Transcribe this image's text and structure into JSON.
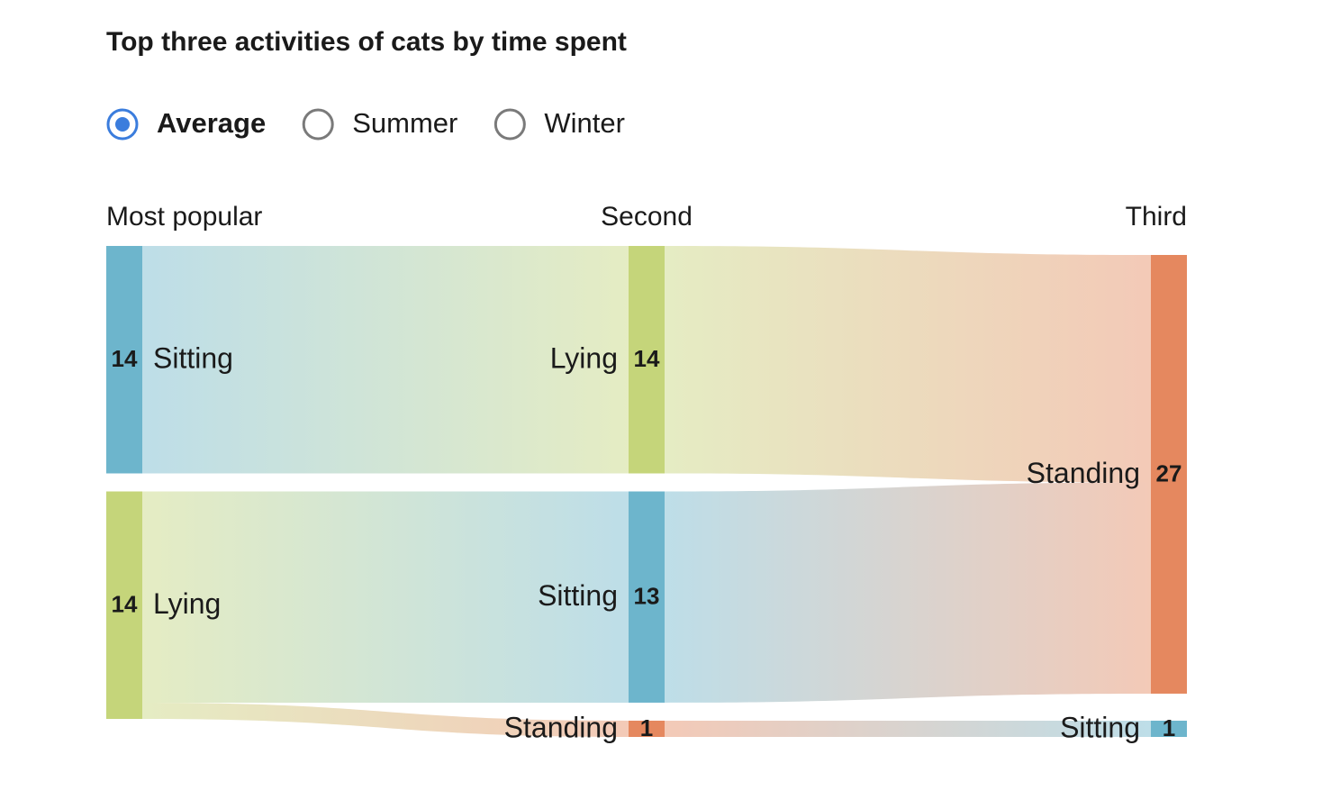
{
  "chart_data": {
    "type": "sankey",
    "title": "Top three activities of cats by time spent",
    "options": [
      "Average",
      "Summer",
      "Winter"
    ],
    "selected_option": 0,
    "columns": [
      {
        "header": "Most popular",
        "nodes": [
          {
            "label": "Sitting",
            "value": 14,
            "color": "#6db5cc"
          },
          {
            "label": "Lying",
            "value": 14,
            "color": "#c5d57a"
          }
        ]
      },
      {
        "header": "Second",
        "nodes": [
          {
            "label": "Lying",
            "value": 14,
            "color": "#c5d57a"
          },
          {
            "label": "Sitting",
            "value": 13,
            "color": "#6db5cc"
          },
          {
            "label": "Standing",
            "value": 1,
            "color": "#e5885f"
          }
        ]
      },
      {
        "header": "Third",
        "nodes": [
          {
            "label": "Standing",
            "value": 27,
            "color": "#e5885f"
          },
          {
            "label": "Sitting",
            "value": 1,
            "color": "#6db5cc"
          }
        ]
      }
    ],
    "links": [
      {
        "source": [
          0,
          0
        ],
        "target": [
          1,
          0
        ],
        "value": 14
      },
      {
        "source": [
          0,
          1
        ],
        "target": [
          1,
          1
        ],
        "value": 13
      },
      {
        "source": [
          0,
          1
        ],
        "target": [
          1,
          2
        ],
        "value": 1
      },
      {
        "source": [
          1,
          0
        ],
        "target": [
          2,
          0
        ],
        "value": 14
      },
      {
        "source": [
          1,
          1
        ],
        "target": [
          2,
          0
        ],
        "value": 13
      },
      {
        "source": [
          1,
          2
        ],
        "target": [
          2,
          1
        ],
        "value": 1
      }
    ]
  }
}
